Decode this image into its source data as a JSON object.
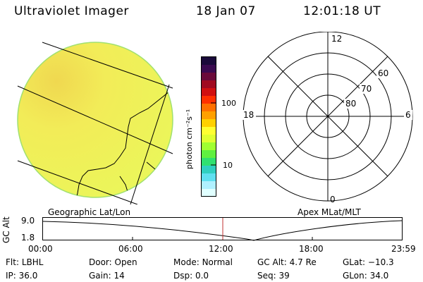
{
  "header": {
    "instrument": "Ultraviolet Imager",
    "date": "18 Jan 07",
    "time": "12:01:18 UT"
  },
  "colorbar": {
    "unit_label": "photon cm⁻²s⁻¹",
    "scale": "log",
    "tick_labels": [
      "100",
      "10"
    ],
    "colors_top_to_bottom": [
      "#1a0a3a",
      "#3a0a50",
      "#6a0a3a",
      "#a00a20",
      "#d01010",
      "#ff3000",
      "#ff7000",
      "#ffa000",
      "#ffd000",
      "#ffff30",
      "#e0ff30",
      "#a0ff30",
      "#60f040",
      "#30e070",
      "#30d0c0",
      "#60e0f0",
      "#b0f0ff",
      "#e0ffff"
    ]
  },
  "geo_map": {
    "label": "Geographic Lat/Lon",
    "fill_color": "#f2f25a",
    "edge_color": "#a0e070"
  },
  "polar_plot": {
    "label": "Apex MLat/MLT",
    "mlt_labels": {
      "top": "12",
      "left": "18",
      "right": "6",
      "bottom": "0"
    },
    "mlat_labels": [
      "80",
      "70",
      "60"
    ]
  },
  "alt_panel": {
    "axis_label": "GC Alt",
    "y_ticks": [
      "9.0",
      "1.8"
    ],
    "x_ticks": [
      "00:00",
      "06:00",
      "12:00",
      "18:00",
      "23:59"
    ],
    "current_time_marker_color": "#c03030"
  },
  "status": {
    "row1": [
      {
        "key": "Flt:",
        "val": "LBHL"
      },
      {
        "key": "Door:",
        "val": "Open"
      },
      {
        "key": "Mode:",
        "val": "Normal"
      },
      {
        "key": "GC Alt:",
        "val": "4.7 Re"
      },
      {
        "key": "GLat:",
        "val": "−10.3"
      }
    ],
    "row2": [
      {
        "key": "IP:",
        "val": "36.0"
      },
      {
        "key": "Gain:",
        "val": "14"
      },
      {
        "key": "Dsp:",
        "val": "0.0"
      },
      {
        "key": "Seq:",
        "val": "39"
      },
      {
        "key": "GLon:",
        "val": "34.0"
      }
    ]
  }
}
